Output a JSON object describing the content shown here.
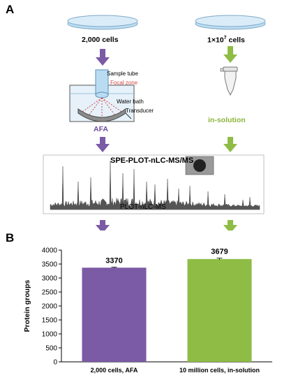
{
  "panel_a": {
    "letter": "A",
    "left_count": "2,000 cells",
    "right_count_base": "1×10",
    "right_count_exp": "7",
    "right_count_unit": " cells",
    "sample_tube": "Sample tube",
    "focal_zone": "Focal zone",
    "water_bath": "Water bath",
    "transducer": "Transducer",
    "afa": "AFA",
    "in_solution": "in-solution",
    "spe_title": "SPE-PLOT-nLC-MS/MS",
    "plot_label": "PLOT-nLC-MS"
  },
  "colors": {
    "purple": "#7b5aa6",
    "green": "#8fbc45",
    "dish": "#cfe6f5"
  },
  "chart_data": {
    "type": "bar",
    "panel_letter": "B",
    "categories": [
      "2,000 cells, AFA",
      "10 million cells, in-solution"
    ],
    "values": [
      3370,
      3679
    ],
    "value_labels": [
      "3370",
      "3679"
    ],
    "errors": [
      20,
      35
    ],
    "colors": [
      "#7b5aa6",
      "#8fbc45"
    ],
    "title": "",
    "xlabel": "",
    "ylabel": "Protein groups",
    "ylim": [
      0,
      4000
    ],
    "yticks": [
      0,
      500,
      1000,
      1500,
      2000,
      2500,
      3000,
      3500,
      4000
    ],
    "ytick_labels": [
      "0",
      "500",
      "1000",
      "1500",
      "2000",
      "2500",
      "3000",
      "3500",
      "4000"
    ],
    "grid": false,
    "legend": "none"
  }
}
